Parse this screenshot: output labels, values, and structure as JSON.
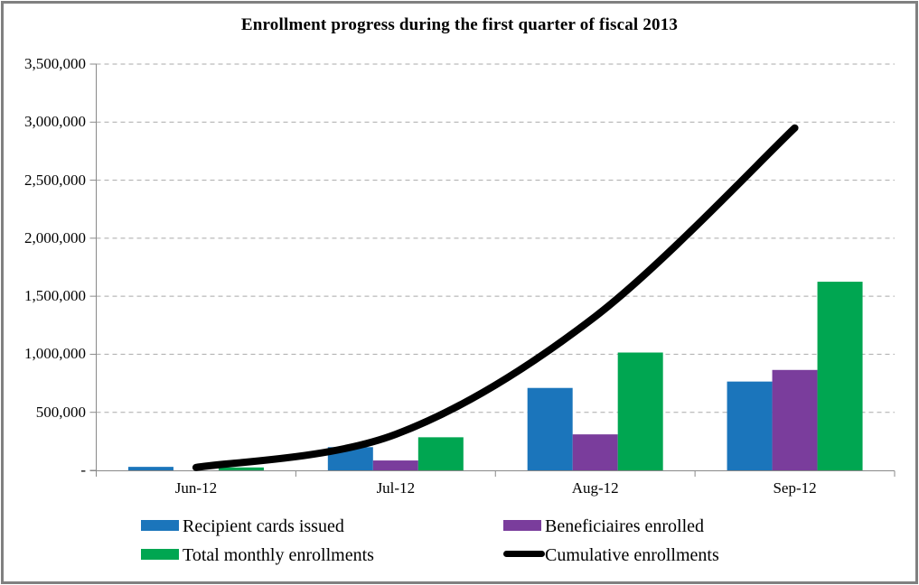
{
  "window": {
    "background_color": "#FFFFFF",
    "frame_border_color": "#808080"
  },
  "chart_data": {
    "type": "bar",
    "subtype": "grouped bars with cumulative overlay line",
    "title": "Enrollment progress during the first quarter of fiscal 2013",
    "categories": [
      "Jun-12",
      "Jul-12",
      "Aug-12",
      "Sep-12"
    ],
    "series": [
      {
        "name": "Recipient cards issued",
        "type": "bar",
        "color": "#1B75BB",
        "values": [
          30000,
          200000,
          710000,
          765000
        ]
      },
      {
        "name": "Beneficiaires enrolled",
        "type": "bar",
        "color": "#7A3D9C",
        "values": [
          0,
          85000,
          310000,
          865000
        ]
      },
      {
        "name": "Total monthly enrollments",
        "type": "bar",
        "color": "#00A651",
        "values": [
          25000,
          285000,
          1015000,
          1625000
        ]
      },
      {
        "name": "Cumulative enrollments",
        "type": "line",
        "color": "#000000",
        "values": [
          25000,
          310000,
          1325000,
          2950000
        ]
      }
    ],
    "xlabel": "",
    "ylabel": "",
    "ylim": [
      0,
      3500000
    ],
    "y_step": 500000,
    "y_tick_labels_bottom_to_top": [
      "-",
      "500,000",
      "1,000,000",
      "1,500,000",
      "2,000,000",
      "2,500,000",
      "3,000,000",
      "3,500,000"
    ],
    "grid": "horizontal dashed",
    "gridline_color": "#A9A9A9",
    "axis_color": "#898989",
    "legend_position": "bottom, two columns"
  }
}
